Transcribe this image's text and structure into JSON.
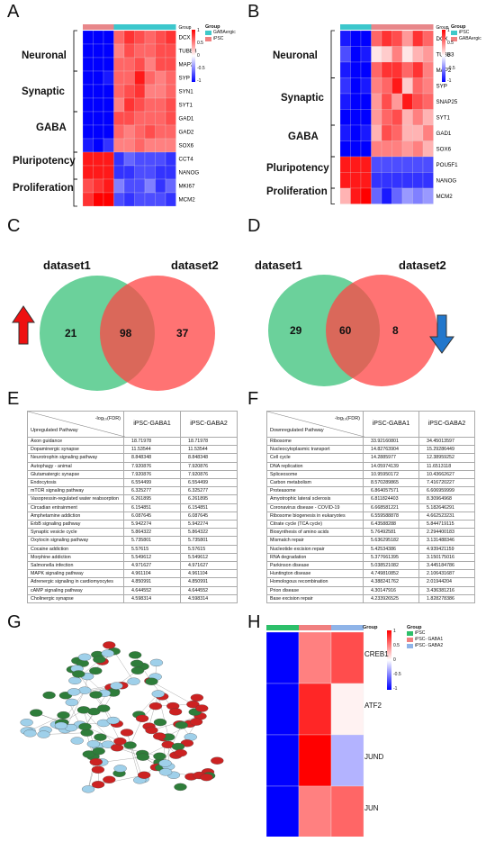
{
  "panels": {
    "A": "A",
    "B": "B",
    "C": "C",
    "D": "D",
    "E": "E",
    "F": "F",
    "G": "G",
    "H": "H"
  },
  "heatmapA": {
    "groups": [
      "Neuronal",
      "Synaptic",
      "GABA",
      "Pluripotency",
      "Proliferation"
    ],
    "genes": [
      "DCX",
      "TUBB3",
      "MAP2",
      "SYP",
      "SYN1",
      "SYT1",
      "GAD1",
      "GAD2",
      "SOX6",
      "CCT4",
      "NANOG",
      "MKI67",
      "MCM2"
    ],
    "legend_title": "Group",
    "legend_items": [
      {
        "label": "GABAergic",
        "color": "#3fc9c9"
      },
      {
        "label": "iPSC",
        "color": "#f08080"
      }
    ],
    "scale": [
      "1",
      "0.5",
      "0",
      "-0.5",
      "-1"
    ],
    "topbar": [
      "#e8878a",
      "#e8878a",
      "#e8878a",
      "#3cc7cc",
      "#3cc7cc",
      "#3cc7cc",
      "#3cc7cc",
      "#3cc7cc",
      "#3cc7cc"
    ],
    "values": [
      [
        -1,
        -1,
        -1,
        0.6,
        0.8,
        0.7,
        0.6,
        0.7,
        0.8
      ],
      [
        -1,
        -1,
        -1,
        0.5,
        0.7,
        0.6,
        0.6,
        0.7,
        0.7
      ],
      [
        -1,
        -1,
        -1,
        0.6,
        0.6,
        0.7,
        0.5,
        0.7,
        0.7
      ],
      [
        -1,
        -1,
        -0.9,
        0.6,
        0.6,
        0.9,
        0.6,
        0.5,
        0.6
      ],
      [
        -1,
        -1,
        -1,
        0.6,
        0.7,
        0.8,
        0.5,
        0.5,
        0.6
      ],
      [
        -1,
        -1,
        -1,
        0.5,
        0.8,
        0.7,
        0.6,
        0.6,
        0.7
      ],
      [
        -1,
        -1,
        -1,
        0.7,
        0.7,
        0.6,
        0.6,
        0.6,
        0.7
      ],
      [
        -1,
        -1,
        -1,
        0.6,
        0.5,
        0.6,
        0.7,
        0.6,
        0.6
      ],
      [
        -0.9,
        -1,
        -0.8,
        0.5,
        0.5,
        0.6,
        0.5,
        0.5,
        0.5
      ],
      [
        0.9,
        0.9,
        0.9,
        -0.8,
        -0.6,
        -0.7,
        -0.7,
        -0.7,
        -0.8
      ],
      [
        0.9,
        0.9,
        0.9,
        -0.8,
        -0.8,
        -0.7,
        -0.7,
        -0.8,
        -0.8
      ],
      [
        0.7,
        0.8,
        0.9,
        -0.5,
        -0.7,
        -0.7,
        -0.5,
        -0.8,
        -0.6
      ],
      [
        0.8,
        1,
        1,
        -0.7,
        -0.8,
        -0.7,
        -0.7,
        -0.7,
        -0.8
      ]
    ]
  },
  "heatmapB": {
    "groups": [
      "Neuronal",
      "Synaptic",
      "GABA",
      "Pluripotency",
      "Proliferation"
    ],
    "genes": [
      "DCX",
      "TUBB3",
      "MAP2",
      "SYP",
      "SNAP25",
      "SYT1",
      "GAD1",
      "SOX6",
      "POU5F1",
      "NANOG",
      "MCM2"
    ],
    "legend_title": "Group",
    "legend_items": [
      {
        "label": "iPSC",
        "color": "#3fc9c9"
      },
      {
        "label": "GABAergic",
        "color": "#f08080"
      }
    ],
    "scale": [
      "1",
      "0.5",
      "0",
      "-0.5",
      "-1"
    ],
    "topbar": [
      "#3cc7cc",
      "#3cc7cc",
      "#3cc7cc",
      "#e8878a",
      "#e8878a",
      "#e8878a",
      "#e8878a",
      "#e8878a",
      "#e8878a"
    ],
    "values": [
      [
        -0.9,
        -1,
        -1,
        0.6,
        0.8,
        0.7,
        0.4,
        0.8,
        0.6
      ],
      [
        -0.7,
        -1,
        -0.9,
        0.1,
        0.2,
        0.5,
        0.1,
        0.3,
        0.4
      ],
      [
        -0.9,
        -1,
        -1,
        0.6,
        0.8,
        0.8,
        0.6,
        0.8,
        0.5
      ],
      [
        -0.8,
        -1,
        -0.9,
        0.5,
        0.6,
        0.9,
        0.2,
        0.6,
        0.5
      ],
      [
        -0.9,
        -1,
        -1,
        0.4,
        0.7,
        0.4,
        0.9,
        0.7,
        0.6
      ],
      [
        -1,
        -1,
        -1,
        0.4,
        0.6,
        0.7,
        0.3,
        0.5,
        0.3
      ],
      [
        -0.9,
        -1,
        -0.9,
        0.3,
        0.7,
        0.6,
        0.3,
        0.3,
        0.5
      ],
      [
        -1,
        -1,
        -1,
        0.5,
        0.5,
        0.5,
        0.4,
        0.5,
        0.3
      ],
      [
        0.9,
        0.9,
        0.9,
        -0.7,
        -0.7,
        -0.7,
        -0.7,
        -0.7,
        -0.7
      ],
      [
        0.9,
        0.9,
        0.9,
        -0.8,
        -0.8,
        -0.8,
        -0.8,
        -0.8,
        -0.8
      ],
      [
        0.3,
        0.9,
        1,
        -0.6,
        -0.9,
        -0.6,
        -0.4,
        -0.5,
        -0.4
      ]
    ]
  },
  "vennC": {
    "left": "dataset1",
    "right": "dataset2",
    "only_left": "21",
    "both": "98",
    "only_right": "37"
  },
  "vennD": {
    "left": "dataset1",
    "right": "dataset2",
    "only_left": "29",
    "both": "60",
    "only_right": "8"
  },
  "tableE": {
    "header_top": "-log₁₀(FDR)",
    "header_bottom": "Upregulated Pathway",
    "col1": "iPSC-GABA1",
    "col2": "iPSC-GABA2",
    "rows": [
      [
        "Axon guidance",
        "18.71978",
        "18.71978"
      ],
      [
        "Dopaminergic synapse",
        "11.53544",
        "11.53544"
      ],
      [
        "Neurotrophin signaling pathway",
        "8.848348",
        "8.848348"
      ],
      [
        "Autophagy - animal",
        "7.920876",
        "7.920876"
      ],
      [
        "Glutamatergic synapse",
        "7.920876",
        "7.920876"
      ],
      [
        "Endocytosis",
        "6.554499",
        "6.554499"
      ],
      [
        "mTOR signaling pathway",
        "6.325277",
        "6.325277"
      ],
      [
        "Vasopressin-regulated water reabsorption",
        "6.261895",
        "6.261895"
      ],
      [
        "Circadian entrainment",
        "6.154851",
        "6.154851"
      ],
      [
        "Amphetamine addiction",
        "6.087645",
        "6.087645"
      ],
      [
        "ErbB signaling pathway",
        "5.942274",
        "5.942274"
      ],
      [
        "Synaptic vesicle cycle",
        "5.864322",
        "5.864322"
      ],
      [
        "Oxytocin signaling pathway",
        "5.735801",
        "5.735801"
      ],
      [
        "Cocaine addiction",
        "5.57615",
        "5.57615"
      ],
      [
        "Morphine addiction",
        "5.549612",
        "5.549612"
      ],
      [
        "Salmonella infection",
        "4.971627",
        "4.971627"
      ],
      [
        "MAPK signaling pathway",
        "4.961104",
        "4.961104"
      ],
      [
        "Adrenergic signaling in cardiomyocytes",
        "4.850991",
        "4.850991"
      ],
      [
        "cAMP signaling pathway",
        "4.644552",
        "4.644552"
      ],
      [
        "Cholinergic synapse",
        "4.598314",
        "4.598314"
      ]
    ]
  },
  "tableF": {
    "header_top": "-log₁₀(FDR)",
    "header_bottom": "Downregulated Pathway",
    "col1": "iPSC-GABA1",
    "col2": "iPSC-GABA2",
    "rows": [
      [
        "Ribosome",
        "33.92160801",
        "34.45013597"
      ],
      [
        "Nucleocytoplasmic transport",
        "14.82763904",
        "15.29286449"
      ],
      [
        "Cell cycle",
        "14.2885977",
        "12.38959252"
      ],
      [
        "DNA replication",
        "14.05974139",
        "11.6513118"
      ],
      [
        "Spliceosome",
        "10.95950172",
        "10.43662627"
      ],
      [
        "Carbon metabolism",
        "8.570289865",
        "7.416720227"
      ],
      [
        "Proteasome",
        "6.864057571",
        "6.606959999"
      ],
      [
        "Amyotrophic lateral sclerosis",
        "6.811824403",
        "8.30964968"
      ],
      [
        "Coronavirus disease - COVID-19",
        "6.668581221",
        "5.182646291"
      ],
      [
        "Ribosome biogenesis in eukaryotes",
        "6.559588878",
        "4.662523231"
      ],
      [
        "Citrate cycle (TCA cycle)",
        "6.43588288",
        "5.844719115"
      ],
      [
        "Biosynthesis of amino acids",
        "5.76492581",
        "2.294400183"
      ],
      [
        "Mismatch repair",
        "5.636295182",
        "3.131488346"
      ],
      [
        "Nucleotide excision repair",
        "5.42534386",
        "4.939421159"
      ],
      [
        "RNA degradation",
        "5.377661395",
        "3.150175016"
      ],
      [
        "Parkinson disease",
        "5.038521082",
        "3.445184786"
      ],
      [
        "Huntington disease",
        "4.749810852",
        "2.106431687"
      ],
      [
        "Homologous recombination",
        "4.388241762",
        "2.01944204"
      ],
      [
        "Prion disease",
        "4.30147916",
        "3.436381216"
      ],
      [
        "Base excision repair",
        "4.233926525",
        "1.828278386"
      ]
    ]
  },
  "heatmapH": {
    "legend_title": "Group",
    "legend_items": [
      {
        "label": "iPSC",
        "color": "#2dbf6a"
      },
      {
        "label": "iPSC- GABA1",
        "color": "#f08080"
      },
      {
        "label": "iPSC- GABA2",
        "color": "#8fb4e8"
      }
    ],
    "scale": [
      "1",
      "0.5",
      "0",
      "-0.5",
      "-1"
    ],
    "genes": [
      "CREB1",
      "ATF2",
      "JUND",
      "JUN"
    ],
    "values": [
      [
        -1,
        0.5,
        0.7
      ],
      [
        -1,
        0.85,
        0.05
      ],
      [
        -1,
        1,
        -0.3
      ],
      [
        -1,
        0.5,
        0.6
      ]
    ]
  },
  "network": {
    "colors": {
      "green": "#2e7d3a",
      "red": "#cc2222",
      "blue": "#9fd0ea",
      "edge": "#555555"
    }
  }
}
